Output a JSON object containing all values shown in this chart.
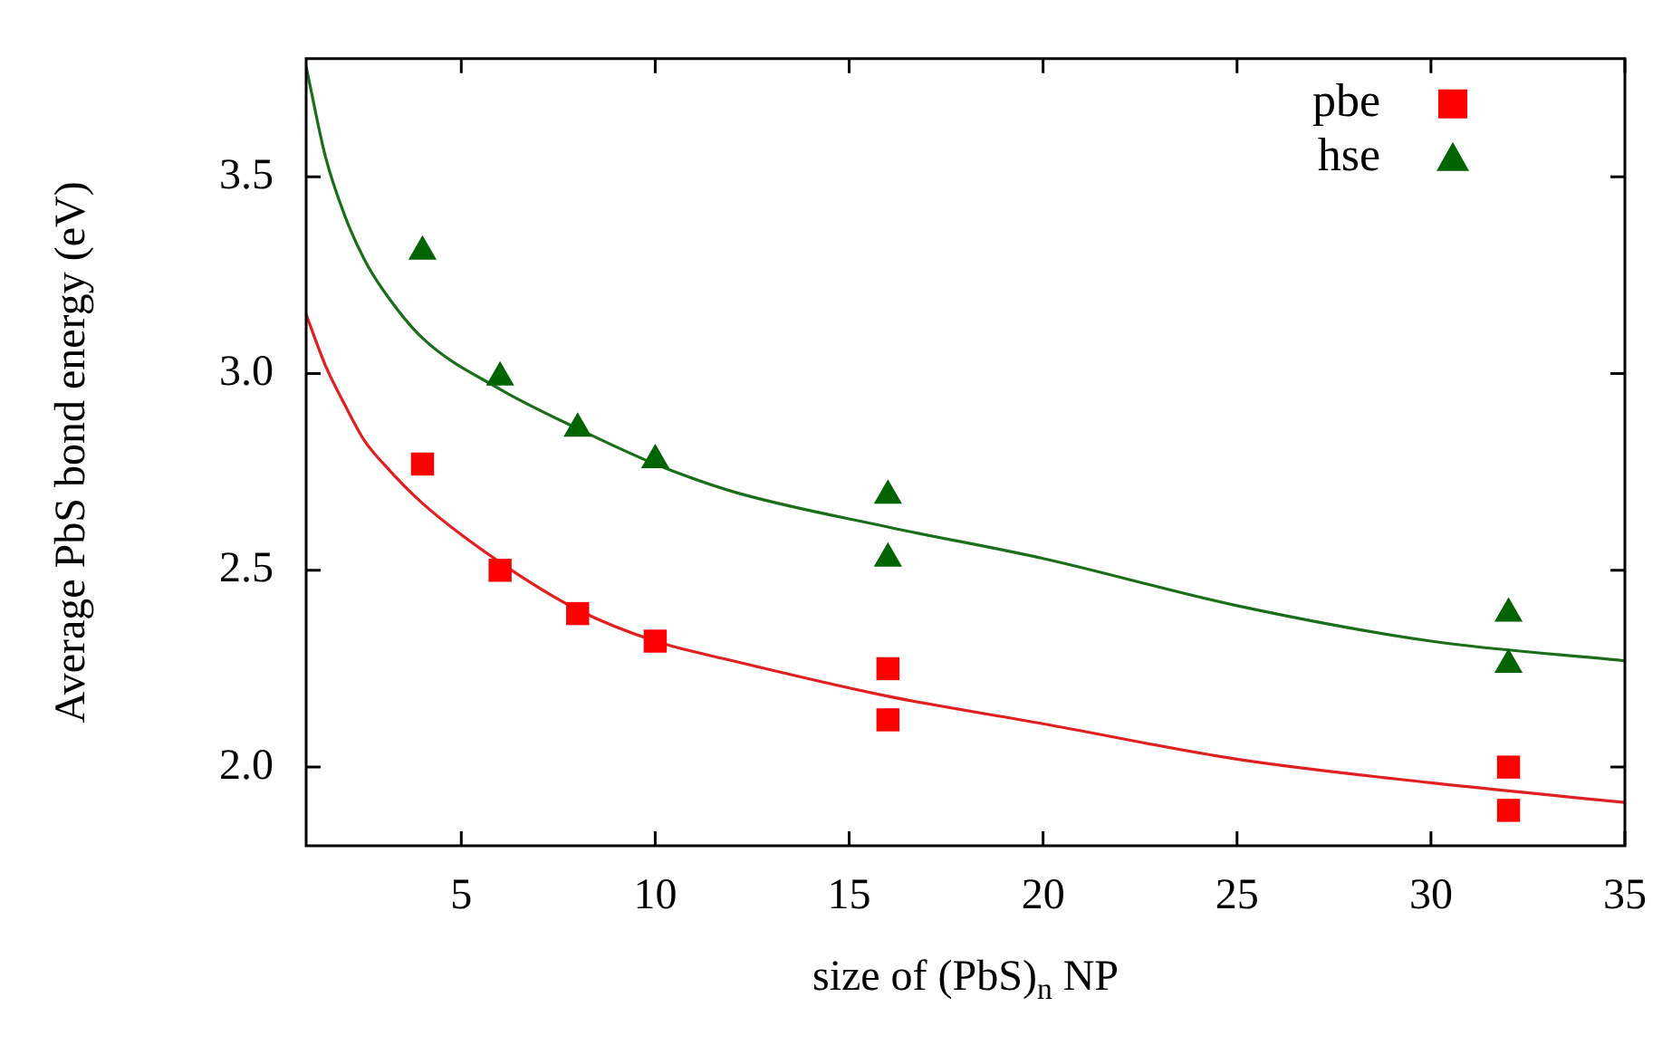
{
  "chart_data": {
    "type": "scatter",
    "xlabel": "size of (PbS)$_{n}$ NP",
    "ylabel": "Average PbS bond energy (eV)",
    "xlim": [
      1,
      35
    ],
    "xticks": [
      5,
      10,
      15,
      20,
      25,
      30,
      35
    ],
    "ylim": [
      1.8,
      3.8
    ],
    "yticks": [
      {
        "value": 2.0,
        "label": "2.0"
      },
      {
        "value": 2.5,
        "label": "2.5"
      },
      {
        "value": 3.0,
        "label": "3.0"
      },
      {
        "value": 3.5,
        "label": "3.5"
      }
    ],
    "grid": false,
    "legend": "top right",
    "series": [
      {
        "name": "pbe",
        "marker": "square",
        "color": "#ff0000",
        "x": [
          4,
          6,
          8,
          10,
          16,
          16,
          32,
          32
        ],
        "values": [
          2.77,
          2.5,
          2.39,
          2.32,
          2.25,
          2.12,
          2.0,
          1.89
        ]
      },
      {
        "name": "hse",
        "marker": "triangle",
        "color": "#006400",
        "x": [
          4,
          6,
          8,
          10,
          16,
          16,
          32,
          32
        ],
        "values": [
          3.31,
          2.99,
          2.86,
          2.78,
          2.69,
          2.53,
          2.39,
          2.26
        ]
      },
      {
        "type": "line",
        "marker": "none",
        "color": "#e02020",
        "x": [
          1,
          1.5,
          2,
          2.5,
          3,
          4,
          6,
          8,
          10,
          12,
          16,
          20,
          25,
          30,
          35
        ],
        "values": [
          3.15,
          3.02,
          2.92,
          2.83,
          2.77,
          2.67,
          2.52,
          2.4,
          2.32,
          2.27,
          2.18,
          2.11,
          2.02,
          1.96,
          1.91
        ]
      },
      {
        "type": "line",
        "marker": "none",
        "color": "#1a6e1a",
        "x": [
          1,
          1.5,
          2,
          2.5,
          3,
          4,
          6,
          8,
          10,
          12,
          16,
          20,
          25,
          30,
          35
        ],
        "values": [
          3.78,
          3.55,
          3.4,
          3.29,
          3.21,
          3.09,
          2.96,
          2.86,
          2.77,
          2.7,
          2.61,
          2.53,
          2.41,
          2.32,
          2.27
        ]
      }
    ]
  }
}
